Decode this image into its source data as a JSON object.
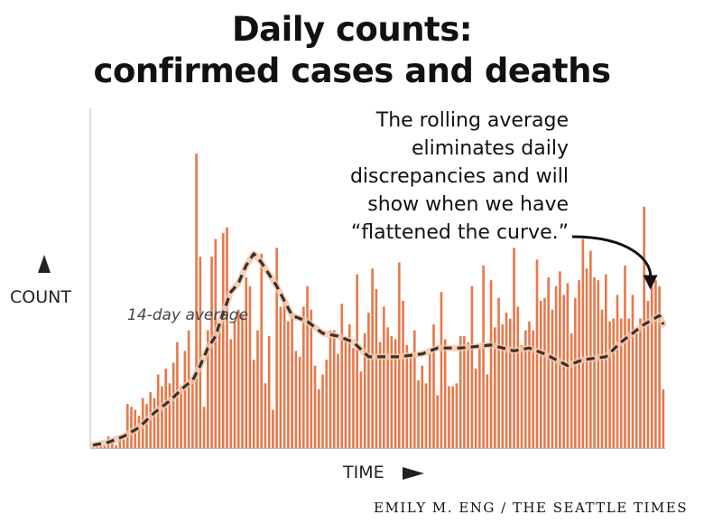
{
  "title_lines": [
    "Daily counts:",
    "confirmed cases and deaths"
  ],
  "annotation_lines": [
    "The rolling average",
    "eliminates daily",
    "discrepancies and will",
    "show when we have",
    "“flattened the curve.”"
  ],
  "credit": "EMILY M. ENG / THE SEATTLE TIMES",
  "colors": {
    "bars": "#e8784a",
    "average_line": "#333333",
    "average_halo": "#f4c6a6",
    "axis": "#bbbbbb",
    "text": "#111111"
  },
  "icons": {
    "y_axis_arrow": "up-triangle-icon",
    "x_axis_arrow": "right-triangle-icon",
    "annotation_arrow": "curved-arrow-icon"
  },
  "chart_data": {
    "type": "bar",
    "xlabel": "TIME",
    "ylabel": "COUNT",
    "ylim": [
      0,
      100
    ],
    "grid": false,
    "tick_labels": false,
    "series": [
      {
        "name": "Daily counts",
        "type": "bar",
        "values": [
          1,
          1,
          1,
          1,
          4,
          2,
          1,
          4,
          3,
          15,
          14,
          13,
          11,
          17,
          15,
          19,
          17,
          25,
          21,
          27,
          22,
          29,
          36,
          21,
          33,
          40,
          23,
          100,
          65,
          14,
          40,
          65,
          71,
          40,
          73,
          75,
          37,
          43,
          47,
          45,
          58,
          55,
          30,
          40,
          66,
          22,
          38,
          13,
          68,
          48,
          50,
          43,
          46,
          33,
          31,
          48,
          55,
          47,
          28,
          20,
          25,
          30,
          40,
          40,
          32,
          49,
          37,
          42,
          34,
          59,
          26,
          39,
          46,
          61,
          54,
          36,
          48,
          41,
          38,
          37,
          63,
          50,
          35,
          32,
          40,
          23,
          28,
          22,
          32,
          42,
          18,
          53,
          37,
          21,
          21,
          22,
          38,
          38,
          36,
          55,
          27,
          34,
          62,
          25,
          57,
          41,
          51,
          42,
          46,
          44,
          68,
          48,
          35,
          40,
          43,
          40,
          64,
          50,
          51,
          58,
          47,
          55,
          60,
          52,
          56,
          39,
          51,
          57,
          71,
          61,
          67,
          58,
          57,
          47,
          59,
          43,
          44,
          52,
          44,
          62,
          44,
          52,
          39,
          44,
          82,
          50,
          56,
          57,
          55,
          20
        ]
      },
      {
        "name": "14-day average",
        "type": "line",
        "style": "dashed",
        "label": "14-day average",
        "points": [
          [
            0,
            1
          ],
          [
            4,
            2
          ],
          [
            8,
            4
          ],
          [
            12,
            7
          ],
          [
            16,
            12
          ],
          [
            20,
            16
          ],
          [
            24,
            21
          ],
          [
            26,
            23
          ],
          [
            28,
            28
          ],
          [
            30,
            34
          ],
          [
            32,
            38
          ],
          [
            34,
            46
          ],
          [
            36,
            53
          ],
          [
            38,
            56
          ],
          [
            40,
            62
          ],
          [
            42,
            66
          ],
          [
            44,
            63
          ],
          [
            46,
            59
          ],
          [
            48,
            55
          ],
          [
            52,
            45
          ],
          [
            56,
            43
          ],
          [
            60,
            39
          ],
          [
            64,
            38
          ],
          [
            68,
            36
          ],
          [
            72,
            31
          ],
          [
            80,
            31
          ],
          [
            86,
            32
          ],
          [
            90,
            34
          ],
          [
            96,
            34
          ],
          [
            104,
            35
          ],
          [
            110,
            33
          ],
          [
            114,
            34
          ],
          [
            118,
            32
          ],
          [
            124,
            28
          ],
          [
            128,
            30
          ],
          [
            134,
            31
          ],
          [
            138,
            36
          ],
          [
            144,
            42
          ],
          [
            148,
            45
          ],
          [
            149,
            42
          ]
        ]
      }
    ]
  }
}
